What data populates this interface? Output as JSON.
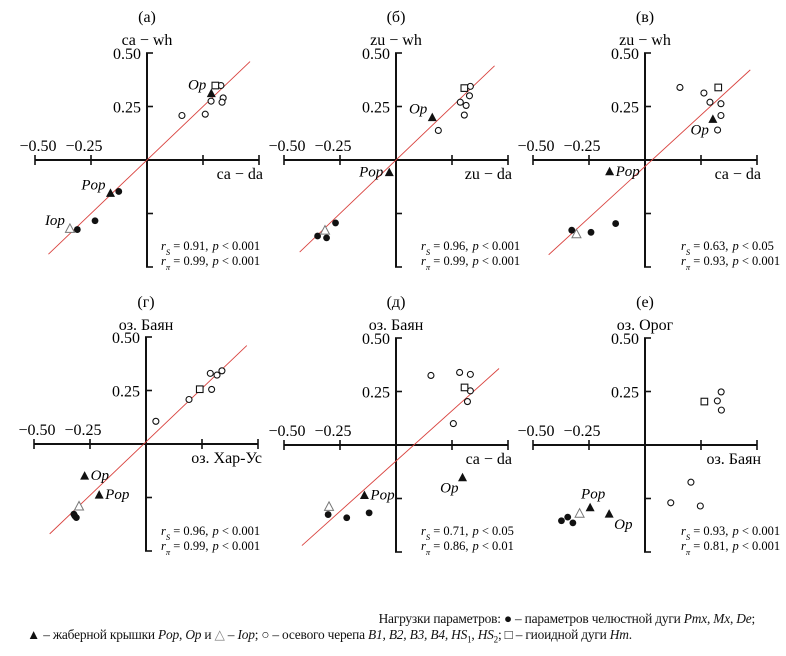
{
  "chart_data": [
    {
      "type": "scatter",
      "title": "(а)",
      "ylabel": "ca − wh",
      "xlabel": "ca − da",
      "xlim": [
        -0.5,
        0.5
      ],
      "ylim": [
        -0.5,
        0.5
      ],
      "xticks": [
        "−0.50",
        "−0.25"
      ],
      "yticks": [
        "0.50",
        "0.25"
      ],
      "fit_line": {
        "slope": 1.0,
        "intercept": 0.0,
        "x_range": [
          -0.44,
          0.46
        ],
        "color": "#d9433f"
      },
      "points": [
        {
          "kind": "axial",
          "x": 0.156,
          "y": 0.208
        },
        {
          "kind": "axial",
          "x": 0.26,
          "y": 0.214
        },
        {
          "kind": "axial",
          "x": 0.286,
          "y": 0.275
        },
        {
          "kind": "axial",
          "x": 0.33,
          "y": 0.348
        },
        {
          "kind": "axial",
          "x": 0.34,
          "y": 0.29
        },
        {
          "kind": "axial",
          "x": 0.335,
          "y": 0.27
        },
        {
          "kind": "hyoid",
          "x": 0.305,
          "y": 0.348
        },
        {
          "kind": "opercle",
          "x": 0.287,
          "y": 0.31,
          "label": "Op",
          "label_side": "above-left"
        },
        {
          "kind": "opercle",
          "x": -0.163,
          "y": -0.156,
          "label": "Pop",
          "label_side": "above-left"
        },
        {
          "kind": "jaw",
          "x": -0.126,
          "y": -0.147
        },
        {
          "kind": "jaw",
          "x": -0.232,
          "y": -0.284
        },
        {
          "kind": "jaw",
          "x": -0.311,
          "y": -0.325
        },
        {
          "kind": "iop",
          "x": -0.344,
          "y": -0.322,
          "label": "Iop",
          "label_side": "above-left"
        }
      ],
      "stats": [
        {
          "sym": "r",
          "sub": "S",
          "value": " = 0.91,",
          "p": "p",
          "pval": " < 0.001"
        },
        {
          "sym": "r",
          "sub": "π",
          "value": " = 0.99,",
          "p": "p",
          "pval": " < 0.001"
        }
      ]
    },
    {
      "type": "scatter",
      "title": "(б)",
      "ylabel": "zu − wh",
      "xlabel": "zu − da",
      "xlim": [
        -0.5,
        0.5
      ],
      "ylim": [
        -0.5,
        0.5
      ],
      "xticks": [
        "−0.50",
        "−0.25"
      ],
      "yticks": [
        "0.50",
        "0.25"
      ],
      "fit_line": {
        "slope": 1.0,
        "intercept": 0.0,
        "x_range": [
          -0.43,
          0.44
        ],
        "color": "#d9433f"
      },
      "points": [
        {
          "kind": "axial",
          "x": 0.189,
          "y": 0.138
        },
        {
          "kind": "axial",
          "x": 0.287,
          "y": 0.27
        },
        {
          "kind": "axial",
          "x": 0.305,
          "y": 0.21
        },
        {
          "kind": "axial",
          "x": 0.313,
          "y": 0.255
        },
        {
          "kind": "axial",
          "x": 0.328,
          "y": 0.3
        },
        {
          "kind": "axial",
          "x": 0.332,
          "y": 0.344
        },
        {
          "kind": "hyoid",
          "x": 0.305,
          "y": 0.336
        },
        {
          "kind": "opercle",
          "x": 0.162,
          "y": 0.198,
          "label": "Op",
          "label_side": "above-left"
        },
        {
          "kind": "opercle",
          "x": -0.03,
          "y": -0.059,
          "label": "Pop",
          "label_side": "left"
        },
        {
          "kind": "jaw",
          "x": -0.27,
          "y": -0.294
        },
        {
          "kind": "jaw",
          "x": -0.35,
          "y": -0.355
        },
        {
          "kind": "jaw",
          "x": -0.31,
          "y": -0.364
        },
        {
          "kind": "iop",
          "x": -0.317,
          "y": -0.33
        }
      ],
      "stats": [
        {
          "sym": "r",
          "sub": "S",
          "value": " = 0.96,",
          "p": "p",
          "pval": " < 0.001"
        },
        {
          "sym": "r",
          "sub": "π",
          "value": " = 0.99,",
          "p": "p",
          "pval": " < 0.001"
        }
      ]
    },
    {
      "type": "scatter",
      "title": "(в)",
      "ylabel": "zu − wh",
      "xlabel": "ca − da",
      "xlim": [
        -0.5,
        0.5
      ],
      "ylim": [
        -0.5,
        0.5
      ],
      "xticks": [
        "−0.50",
        "−0.25"
      ],
      "yticks": [
        "0.50",
        "0.25"
      ],
      "fit_line": {
        "slope": 0.96,
        "intercept": -0.03,
        "x_range": [
          -0.43,
          0.47
        ],
        "color": "#d9433f"
      },
      "points": [
        {
          "kind": "axial",
          "x": 0.156,
          "y": 0.339
        },
        {
          "kind": "axial",
          "x": 0.263,
          "y": 0.313
        },
        {
          "kind": "axial",
          "x": 0.29,
          "y": 0.27
        },
        {
          "kind": "axial",
          "x": 0.339,
          "y": 0.263
        },
        {
          "kind": "axial",
          "x": 0.339,
          "y": 0.208
        },
        {
          "kind": "axial",
          "x": 0.324,
          "y": 0.14
        },
        {
          "kind": "hyoid",
          "x": 0.327,
          "y": 0.339
        },
        {
          "kind": "opercle",
          "x": 0.303,
          "y": 0.19,
          "label": "Op",
          "label_side": "below-left"
        },
        {
          "kind": "opercle",
          "x": -0.158,
          "y": -0.055,
          "label": "Pop",
          "label_side": "right"
        },
        {
          "kind": "jaw",
          "x": -0.131,
          "y": -0.297
        },
        {
          "kind": "jaw",
          "x": -0.241,
          "y": -0.338
        },
        {
          "kind": "jaw",
          "x": -0.327,
          "y": -0.328
        },
        {
          "kind": "iop",
          "x": -0.306,
          "y": -0.347
        }
      ],
      "stats": [
        {
          "sym": "r",
          "sub": "S",
          "value": " = 0.63,",
          "p": "p",
          "pval": " < 0.05"
        },
        {
          "sym": "r",
          "sub": "π",
          "value": " = 0.93,",
          "p": "p",
          "pval": " < 0.001"
        }
      ]
    },
    {
      "type": "scatter",
      "title": "(г)",
      "ylabel": "оз. Баян",
      "xlabel": "оз. Хар-Ус",
      "xlim": [
        -0.5,
        0.5
      ],
      "ylim": [
        -0.5,
        0.5
      ],
      "xticks": [
        "−0.50",
        "−0.25"
      ],
      "yticks": [
        "0.50",
        "0.25"
      ],
      "fit_line": {
        "slope": 1.0,
        "intercept": 0.01,
        "x_range": [
          -0.43,
          0.45
        ],
        "color": "#d9433f"
      },
      "points": [
        {
          "kind": "axial",
          "x": 0.044,
          "y": 0.106
        },
        {
          "kind": "axial",
          "x": 0.192,
          "y": 0.208
        },
        {
          "kind": "axial",
          "x": 0.293,
          "y": 0.255
        },
        {
          "kind": "axial",
          "x": 0.287,
          "y": 0.33
        },
        {
          "kind": "axial",
          "x": 0.317,
          "y": 0.322
        },
        {
          "kind": "axial",
          "x": 0.339,
          "y": 0.342
        },
        {
          "kind": "hyoid",
          "x": 0.24,
          "y": 0.256
        },
        {
          "kind": "opercle",
          "x": -0.274,
          "y": -0.15,
          "label": "Op",
          "label_side": "right"
        },
        {
          "kind": "opercle",
          "x": -0.209,
          "y": -0.239,
          "label": "Pop",
          "label_side": "right"
        },
        {
          "kind": "jaw",
          "x": -0.322,
          "y": -0.328
        },
        {
          "kind": "jaw",
          "x": -0.311,
          "y": -0.344
        },
        {
          "kind": "jaw",
          "x": -0.318,
          "y": -0.336
        },
        {
          "kind": "iop",
          "x": -0.299,
          "y": -0.292
        }
      ],
      "stats": [
        {
          "sym": "r",
          "sub": "S",
          "value": " = 0.96,",
          "p": "p",
          "pval": " < 0.001"
        },
        {
          "sym": "r",
          "sub": "π",
          "value": " = 0.99,",
          "p": "p",
          "pval": " < 0.001"
        }
      ]
    },
    {
      "type": "scatter",
      "title": "(д)",
      "ylabel": "оз. Баян",
      "xlabel": "ca − da",
      "xlim": [
        -0.5,
        0.5
      ],
      "ylim": [
        -0.5,
        0.5
      ],
      "xticks": [
        "−0.50",
        "−0.25"
      ],
      "yticks": [
        "0.50",
        "0.25"
      ],
      "fit_line": {
        "slope": 0.94,
        "intercept": -0.075,
        "x_range": [
          -0.42,
          0.46
        ],
        "color": "#d9433f"
      },
      "points": [
        {
          "kind": "axial",
          "x": 0.156,
          "y": 0.325
        },
        {
          "kind": "axial",
          "x": 0.284,
          "y": 0.339
        },
        {
          "kind": "axial",
          "x": 0.332,
          "y": 0.33
        },
        {
          "kind": "axial",
          "x": 0.332,
          "y": 0.253
        },
        {
          "kind": "axial",
          "x": 0.319,
          "y": 0.203
        },
        {
          "kind": "axial",
          "x": 0.256,
          "y": 0.1
        },
        {
          "kind": "hyoid",
          "x": 0.306,
          "y": 0.269
        },
        {
          "kind": "opercle",
          "x": 0.297,
          "y": -0.153,
          "label": "Op",
          "label_side": "below-left"
        },
        {
          "kind": "opercle",
          "x": -0.141,
          "y": -0.236,
          "label": "Pop",
          "label_side": "right"
        },
        {
          "kind": "jaw",
          "x": -0.303,
          "y": -0.325
        },
        {
          "kind": "jaw",
          "x": -0.22,
          "y": -0.34
        },
        {
          "kind": "jaw",
          "x": -0.12,
          "y": -0.317
        },
        {
          "kind": "iop",
          "x": -0.299,
          "y": -0.289
        }
      ],
      "stats": [
        {
          "sym": "r",
          "sub": "S",
          "value": " = 0.71,",
          "p": "p",
          "pval": " < 0.05"
        },
        {
          "sym": "r",
          "sub": "π",
          "value": " = 0.86,",
          "p": "p",
          "pval": " < 0.01"
        }
      ]
    },
    {
      "type": "scatter",
      "title": "(е)",
      "ylabel": "оз. Орог",
      "xlabel": "оз. Баян",
      "xlim": [
        -0.5,
        0.5
      ],
      "ylim": [
        -0.5,
        0.5
      ],
      "xticks": [
        "−0.50",
        "−0.25"
      ],
      "yticks": [
        "0.50",
        "0.25"
      ],
      "fit_line": null,
      "points": [
        {
          "kind": "axial",
          "x": 0.34,
          "y": 0.248
        },
        {
          "kind": "axial",
          "x": 0.323,
          "y": 0.206
        },
        {
          "kind": "axial",
          "x": 0.341,
          "y": 0.163
        },
        {
          "kind": "axial",
          "x": 0.205,
          "y": -0.174
        },
        {
          "kind": "axial",
          "x": 0.115,
          "y": -0.27
        },
        {
          "kind": "axial",
          "x": 0.247,
          "y": -0.285
        },
        {
          "kind": "hyoid",
          "x": 0.265,
          "y": 0.203
        },
        {
          "kind": "opercle",
          "x": -0.245,
          "y": -0.293,
          "label": "Pop",
          "label_side": "above"
        },
        {
          "kind": "opercle",
          "x": -0.16,
          "y": -0.323,
          "label": "Op",
          "label_side": "below-right"
        },
        {
          "kind": "iop",
          "x": -0.292,
          "y": -0.321
        },
        {
          "kind": "jaw",
          "x": -0.373,
          "y": -0.354
        },
        {
          "kind": "jaw",
          "x": -0.345,
          "y": -0.337
        },
        {
          "kind": "jaw",
          "x": -0.322,
          "y": -0.364
        }
      ],
      "stats": [
        {
          "sym": "r",
          "sub": "S",
          "value": " = 0.93,",
          "p": "p",
          "pval": " < 0.001"
        },
        {
          "sym": "r",
          "sub": "π",
          "value": " = 0.81,",
          "p": "p",
          "pval": " < 0.001"
        }
      ]
    }
  ],
  "legend": {
    "line1": [
      {
        "text": "Нагрузки параметров: ",
        "italic": false
      },
      {
        "text": "●",
        "italic": false
      },
      {
        "text": " – параметров челюстной дуги ",
        "italic": false
      },
      {
        "text": "Pmx",
        "italic": true
      },
      {
        "text": ", ",
        "italic": false
      },
      {
        "text": "Mx",
        "italic": true
      },
      {
        "text": ", ",
        "italic": false
      },
      {
        "text": "De",
        "italic": true
      },
      {
        "text": ";",
        "italic": false
      }
    ],
    "line2": [
      {
        "text": "▲",
        "italic": false
      },
      {
        "text": " – жаберной крышки ",
        "italic": false
      },
      {
        "text": "Pop",
        "italic": true
      },
      {
        "text": ", ",
        "italic": false
      },
      {
        "text": "Op",
        "italic": true
      },
      {
        "text": " и ",
        "italic": false
      },
      {
        "text": "△",
        "italic": false
      },
      {
        "text": " – ",
        "italic": false
      },
      {
        "text": "Iop",
        "italic": true
      },
      {
        "text": "; ",
        "italic": false
      },
      {
        "text": "○",
        "italic": false
      },
      {
        "text": " – осевого черепа ",
        "italic": false
      },
      {
        "text": "B1, B2, B3, B4, HS",
        "italic": true
      },
      {
        "text": "1",
        "italic": false,
        "sub": true
      },
      {
        "text": ", ",
        "italic": false
      },
      {
        "text": "HS",
        "italic": true
      },
      {
        "text": "2",
        "italic": false,
        "sub": true
      },
      {
        "text": "; ",
        "italic": false
      },
      {
        "text": "□",
        "italic": false
      },
      {
        "text": " – гиоидной дуги ",
        "italic": false
      },
      {
        "text": "Hm",
        "italic": true
      },
      {
        "text": ".",
        "italic": false
      }
    ]
  }
}
